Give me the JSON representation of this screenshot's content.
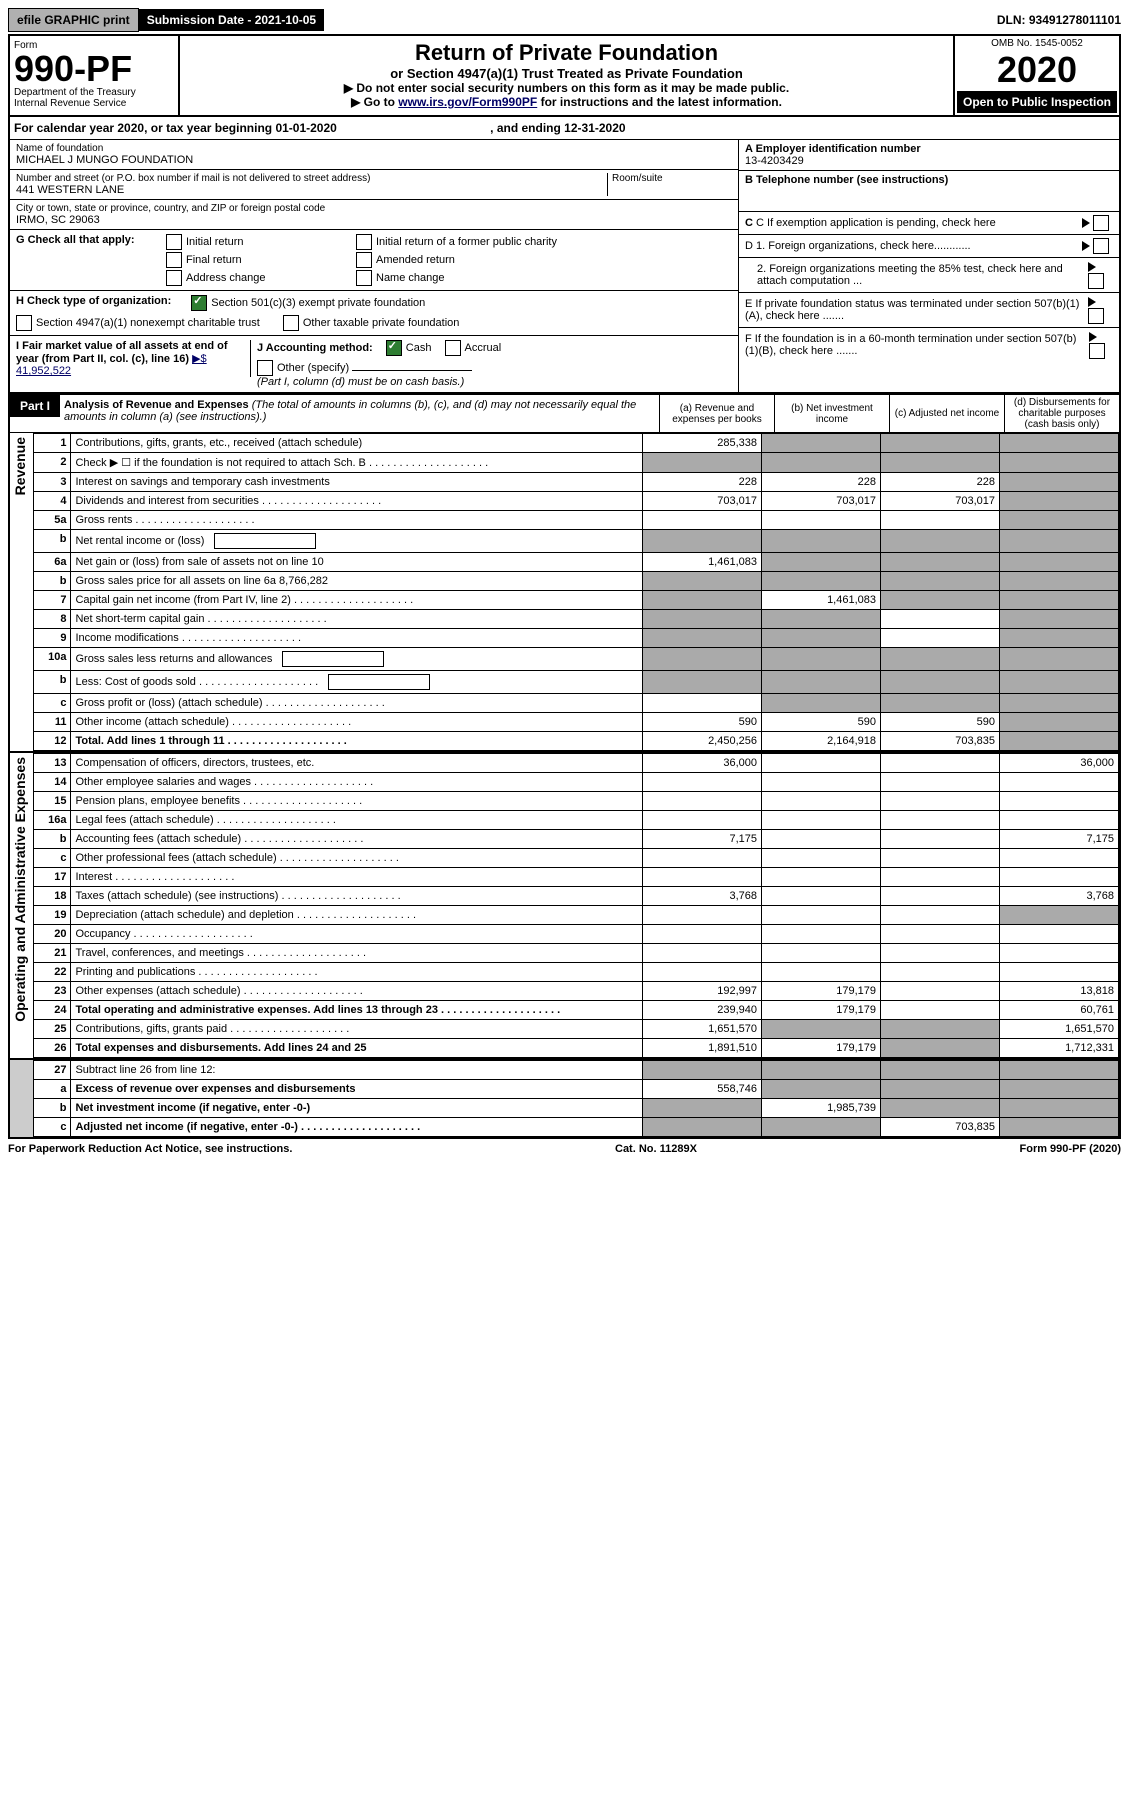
{
  "top": {
    "efile": "efile GRAPHIC print",
    "submission": "Submission Date - 2021-10-05",
    "dln": "DLN: 93491278011101"
  },
  "header": {
    "form_label": "Form",
    "form_no": "990-PF",
    "dept": "Department of the Treasury",
    "irs": "Internal Revenue Service",
    "title": "Return of Private Foundation",
    "subtitle": "or Section 4947(a)(1) Trust Treated as Private Foundation",
    "instr1": "▶ Do not enter social security numbers on this form as it may be made public.",
    "instr2_pre": "▶ Go to ",
    "instr2_link": "www.irs.gov/Form990PF",
    "instr2_post": " for instructions and the latest information.",
    "omb": "OMB No. 1545-0052",
    "year": "2020",
    "open": "Open to Public Inspection"
  },
  "cal": {
    "text_pre": "For calendar year 2020, or tax year beginning 01-01-2020",
    "text_mid": ", and ending 12-31-2020"
  },
  "info": {
    "name_lbl": "Name of foundation",
    "name": "MICHAEL J MUNGO FOUNDATION",
    "addr_lbl": "Number and street (or P.O. box number if mail is not delivered to street address)",
    "addr": "441 WESTERN LANE",
    "room_lbl": "Room/suite",
    "city_lbl": "City or town, state or province, country, and ZIP or foreign postal code",
    "city": "IRMO, SC  29063",
    "a_lbl": "A Employer identification number",
    "a_val": "13-4203429",
    "b_lbl": "B Telephone number (see instructions)",
    "c_lbl": "C If exemption application is pending, check here",
    "g_lbl": "G Check all that apply:",
    "g_opts": [
      "Initial return",
      "Final return",
      "Address change",
      "Initial return of a former public charity",
      "Amended return",
      "Name change"
    ],
    "d1": "D 1. Foreign organizations, check here............",
    "d2": "2. Foreign organizations meeting the 85% test, check here and attach computation ...",
    "h_lbl": "H Check type of organization:",
    "h1": "Section 501(c)(3) exempt private foundation",
    "h2": "Section 4947(a)(1) nonexempt charitable trust",
    "h3": "Other taxable private foundation",
    "e_lbl": "E  If private foundation status was terminated under section 507(b)(1)(A), check here .......",
    "i_lbl": "I Fair market value of all assets at end of year (from Part II, col. (c), line 16)",
    "i_val": "▶$  41,952,522",
    "j_lbl": "J Accounting method:",
    "j_cash": "Cash",
    "j_accr": "Accrual",
    "j_other": "Other (specify)",
    "j_note": "(Part I, column (d) must be on cash basis.)",
    "f_lbl": "F  If the foundation is in a 60-month termination under section 507(b)(1)(B), check here ......."
  },
  "part1": {
    "label": "Part I",
    "title": "Analysis of Revenue and Expenses",
    "title_note": " (The total of amounts in columns (b), (c), and (d) may not necessarily equal the amounts in column (a) (see instructions).)",
    "cols": [
      "(a)   Revenue and expenses per books",
      "(b)   Net investment income",
      "(c)   Adjusted net income",
      "(d)   Disbursements for charitable purposes (cash basis only)"
    ]
  },
  "sides": {
    "rev": "Revenue",
    "exp": "Operating and Administrative Expenses"
  },
  "rows": [
    {
      "n": "1",
      "d": "Contributions, gifts, grants, etc., received (attach schedule)",
      "a": "285,338",
      "b": "",
      "c": "",
      "ds": "s",
      "cs": "s",
      "bs": "s"
    },
    {
      "n": "2",
      "d": "Check ▶ ☐ if the foundation is not required to attach Sch. B",
      "dots": true,
      "a": "",
      "b": "",
      "c": "",
      "as": "s",
      "bs": "s",
      "cs": "s",
      "ds": "s"
    },
    {
      "n": "3",
      "d": "Interest on savings and temporary cash investments",
      "a": "228",
      "b": "228",
      "c": "228",
      "ds": "s"
    },
    {
      "n": "4",
      "d": "Dividends and interest from securities",
      "dots": true,
      "a": "703,017",
      "b": "703,017",
      "c": "703,017",
      "ds": "s"
    },
    {
      "n": "5a",
      "d": "Gross rents",
      "dots": true,
      "ds": "s"
    },
    {
      "n": "b",
      "d": "Net rental income or (loss)",
      "box": true,
      "as": "s",
      "bs": "s",
      "cs": "s",
      "ds": "s"
    },
    {
      "n": "6a",
      "d": "Net gain or (loss) from sale of assets not on line 10",
      "a": "1,461,083",
      "bs": "s",
      "cs": "s",
      "ds": "s"
    },
    {
      "n": "b",
      "d": "Gross sales price for all assets on line 6a              8,766,282",
      "as": "s",
      "bs": "s",
      "cs": "s",
      "ds": "s"
    },
    {
      "n": "7",
      "d": "Capital gain net income (from Part IV, line 2)",
      "dots": true,
      "b": "1,461,083",
      "as": "s",
      "cs": "s",
      "ds": "s"
    },
    {
      "n": "8",
      "d": "Net short-term capital gain",
      "dots": true,
      "as": "s",
      "bs": "s",
      "ds": "s"
    },
    {
      "n": "9",
      "d": "Income modifications",
      "dots": true,
      "as": "s",
      "bs": "s",
      "ds": "s"
    },
    {
      "n": "10a",
      "d": "Gross sales less returns and allowances",
      "box": true,
      "as": "s",
      "bs": "s",
      "cs": "s",
      "ds": "s"
    },
    {
      "n": "b",
      "d": "Less: Cost of goods sold",
      "dots": true,
      "box": true,
      "as": "s",
      "bs": "s",
      "cs": "s",
      "ds": "s"
    },
    {
      "n": "c",
      "d": "Gross profit or (loss) (attach schedule)",
      "dots": true,
      "bs": "s",
      "cs": "s",
      "ds": "s"
    },
    {
      "n": "11",
      "d": "Other income (attach schedule)",
      "dots": true,
      "a": "590",
      "b": "590",
      "c": "590",
      "ds": "s"
    },
    {
      "n": "12",
      "d": "Total. Add lines 1 through 11",
      "dots": true,
      "bold": true,
      "a": "2,450,256",
      "b": "2,164,918",
      "c": "703,835",
      "ds": "s"
    }
  ],
  "exp_rows": [
    {
      "n": "13",
      "d": "Compensation of officers, directors, trustees, etc.",
      "a": "36,000",
      "dv": "36,000"
    },
    {
      "n": "14",
      "d": "Other employee salaries and wages",
      "dots": true
    },
    {
      "n": "15",
      "d": "Pension plans, employee benefits",
      "dots": true
    },
    {
      "n": "16a",
      "d": "Legal fees (attach schedule)",
      "dots": true
    },
    {
      "n": "b",
      "d": "Accounting fees (attach schedule)",
      "dots": true,
      "a": "7,175",
      "dv": "7,175"
    },
    {
      "n": "c",
      "d": "Other professional fees (attach schedule)",
      "dots": true
    },
    {
      "n": "17",
      "d": "Interest",
      "dots": true
    },
    {
      "n": "18",
      "d": "Taxes (attach schedule) (see instructions)",
      "dots": true,
      "a": "3,768",
      "dv": "3,768"
    },
    {
      "n": "19",
      "d": "Depreciation (attach schedule) and depletion",
      "dots": true,
      "ds": "s"
    },
    {
      "n": "20",
      "d": "Occupancy",
      "dots": true
    },
    {
      "n": "21",
      "d": "Travel, conferences, and meetings",
      "dots": true
    },
    {
      "n": "22",
      "d": "Printing and publications",
      "dots": true
    },
    {
      "n": "23",
      "d": "Other expenses (attach schedule)",
      "dots": true,
      "a": "192,997",
      "b": "179,179",
      "dv": "13,818"
    },
    {
      "n": "24",
      "d": "Total operating and administrative expenses. Add lines 13 through 23",
      "dots": true,
      "bold": true,
      "a": "239,940",
      "b": "179,179",
      "dv": "60,761"
    },
    {
      "n": "25",
      "d": "Contributions, gifts, grants paid",
      "dots": true,
      "a": "1,651,570",
      "bs": "s",
      "cs": "s",
      "dv": "1,651,570"
    },
    {
      "n": "26",
      "d": "Total expenses and disbursements. Add lines 24 and 25",
      "bold": true,
      "a": "1,891,510",
      "b": "179,179",
      "cs": "s",
      "dv": "1,712,331"
    }
  ],
  "net_rows": [
    {
      "n": "27",
      "d": "Subtract line 26 from line 12:",
      "as": "s",
      "bs": "s",
      "cs": "s",
      "ds": "s"
    },
    {
      "n": "a",
      "d": "Excess of revenue over expenses and disbursements",
      "bold": true,
      "a": "558,746",
      "bs": "s",
      "cs": "s",
      "ds": "s"
    },
    {
      "n": "b",
      "d": "Net investment income (if negative, enter -0-)",
      "bold": true,
      "b": "1,985,739",
      "as": "s",
      "cs": "s",
      "ds": "s"
    },
    {
      "n": "c",
      "d": "Adjusted net income (if negative, enter -0-)",
      "bold": true,
      "dots": true,
      "c": "703,835",
      "as": "s",
      "bs": "s",
      "ds": "s"
    }
  ],
  "footer": {
    "left": "For Paperwork Reduction Act Notice, see instructions.",
    "mid": "Cat. No. 11289X",
    "right": "Form 990-PF (2020)"
  }
}
